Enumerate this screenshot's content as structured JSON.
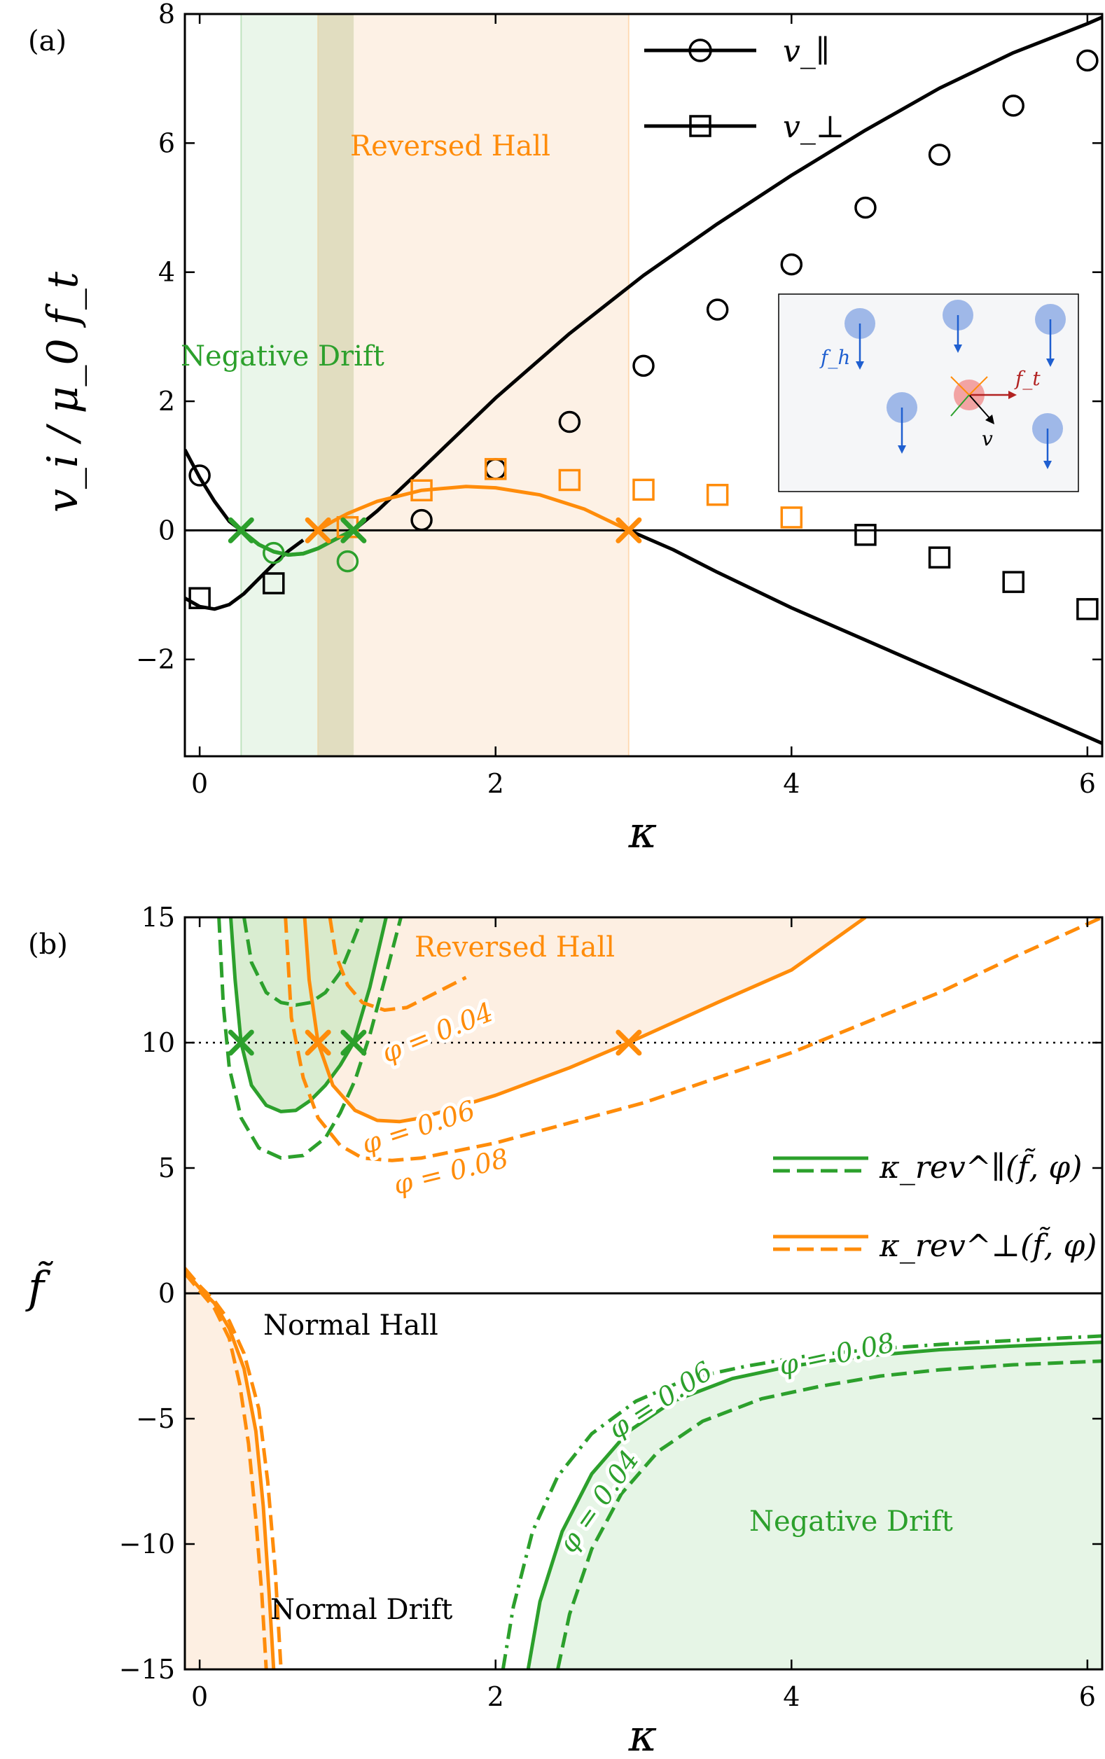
{
  "colors": {
    "green": "#2ca02c",
    "orange": "#ff8c0a",
    "black": "#000000",
    "green_fill": "#e6f5e6",
    "orange_fill": "#fdefe2",
    "inset_bg": "#f5f6f8",
    "blue": "#1f5fd0",
    "blue_disc": "#9fb8e8",
    "red_disc": "#f2a3a3",
    "red": "#b22222"
  },
  "chart_data": [
    {
      "type": "line",
      "panel_label": "(a)",
      "xlabel": "κ",
      "ylabel": "v_i / μ_0 f_t",
      "xlim": [
        -0.1,
        6.1
      ],
      "ylim": [
        -3.5,
        8
      ],
      "xticks": [
        0,
        2,
        4,
        6
      ],
      "yticks": [
        -2,
        0,
        2,
        4,
        6,
        8
      ],
      "grid": false,
      "legend_position": "top-right",
      "legend": [
        {
          "label": "v_∥",
          "marker": "circle"
        },
        {
          "label": "v_⊥",
          "marker": "square"
        }
      ],
      "regions": [
        {
          "name": "Negative Drift",
          "x": [
            0.28,
            1.04
          ],
          "color": "green"
        },
        {
          "name": "Reversed Hall",
          "x": [
            0.8,
            2.9
          ],
          "color": "orange"
        }
      ],
      "theory_parallel": {
        "x": [
          -0.1,
          0,
          0.1,
          0.2,
          0.28,
          0.4,
          0.5,
          0.6,
          0.7,
          0.8,
          0.9,
          1.0,
          1.04,
          1.2,
          1.5,
          2,
          2.5,
          3,
          3.5,
          4,
          4.5,
          5,
          5.5,
          6,
          6.1
        ],
        "y": [
          1.25,
          0.82,
          0.45,
          0.14,
          0.0,
          -0.22,
          -0.33,
          -0.38,
          -0.36,
          -0.28,
          -0.16,
          -0.04,
          0.0,
          0.3,
          0.95,
          2.05,
          3.05,
          3.95,
          4.75,
          5.5,
          6.2,
          6.85,
          7.4,
          7.85,
          7.95
        ],
        "color": "black"
      },
      "theory_perp": {
        "x": [
          -0.1,
          0,
          0.1,
          0.2,
          0.3,
          0.4,
          0.5,
          0.6,
          0.7,
          0.8,
          0.9,
          1.0,
          1.2,
          1.5,
          1.8,
          2.0,
          2.3,
          2.6,
          2.9,
          3.2,
          3.5,
          4,
          4.5,
          5,
          5.5,
          6,
          6.1
        ],
        "y": [
          -1.05,
          -1.18,
          -1.22,
          -1.15,
          -0.98,
          -0.75,
          -0.52,
          -0.32,
          -0.15,
          0.0,
          0.14,
          0.26,
          0.45,
          0.62,
          0.68,
          0.66,
          0.55,
          0.33,
          0.0,
          -0.3,
          -0.65,
          -1.2,
          -1.7,
          -2.2,
          -2.7,
          -3.2,
          -3.3
        ]
      },
      "sim_parallel": {
        "x": [
          0,
          0.5,
          1.0,
          1.5,
          2.0,
          2.5,
          3.0,
          3.5,
          4.0,
          4.5,
          5.0,
          5.5,
          6.0
        ],
        "y": [
          0.85,
          -0.35,
          -0.48,
          0.16,
          0.95,
          1.68,
          2.55,
          3.42,
          4.12,
          5.0,
          5.82,
          6.58,
          7.28
        ],
        "colors": [
          "black",
          "green",
          "green",
          "black",
          "black",
          "black",
          "black",
          "black",
          "black",
          "black",
          "black",
          "black",
          "black"
        ]
      },
      "sim_perp": {
        "x": [
          0,
          0.5,
          1.0,
          1.5,
          2.0,
          2.5,
          3.0,
          3.5,
          4.0,
          4.5,
          5.0,
          5.5,
          6.0
        ],
        "y": [
          -1.05,
          -0.82,
          0.05,
          0.62,
          0.95,
          0.78,
          0.63,
          0.55,
          0.2,
          -0.07,
          -0.42,
          -0.8,
          -1.22
        ],
        "colors": [
          "black",
          "black",
          "orange",
          "orange",
          "orange",
          "orange",
          "orange",
          "orange",
          "orange",
          "black",
          "black",
          "black",
          "black"
        ]
      },
      "crossings": [
        {
          "x": 0.28,
          "y": 0,
          "color": "green"
        },
        {
          "x": 1.04,
          "y": 0,
          "color": "green"
        },
        {
          "x": 0.8,
          "y": 0,
          "color": "orange"
        },
        {
          "x": 2.9,
          "y": 0,
          "color": "orange"
        }
      ],
      "inset": {
        "f_h_label": "f_h",
        "f_t_label": "f_t",
        "v_label": "v"
      }
    },
    {
      "type": "line",
      "panel_label": "(b)",
      "xlabel": "κ",
      "ylabel": "f̃",
      "xlim": [
        -0.1,
        6.1
      ],
      "ylim": [
        -15,
        15
      ],
      "xticks": [
        0,
        2,
        4,
        6
      ],
      "yticks": [
        -15,
        -10,
        -5,
        0,
        5,
        10,
        15
      ],
      "grid": false,
      "legend_position": "center-right",
      "legend": [
        {
          "label": "κ_rev^∥(f̃, φ)",
          "color": "green"
        },
        {
          "label": "κ_rev^⊥(f̃, φ)",
          "color": "orange"
        }
      ],
      "region_labels": [
        {
          "text": "Reversed Hall",
          "color": "orange"
        },
        {
          "text": "Normal Hall",
          "color": "black"
        },
        {
          "text": "Normal Drift",
          "color": "black"
        },
        {
          "text": "Negative Drift",
          "color": "green"
        }
      ],
      "reference_line": {
        "y": 10,
        "style": "dotted"
      },
      "zero_line": {
        "y": 0
      },
      "phi_labels_upper": [
        "φ = 0.04",
        "φ = 0.06",
        "φ = 0.08"
      ],
      "phi_labels_lower": [
        "φ = 0.04",
        "φ = 0.06",
        "φ = 0.08"
      ],
      "curves": [
        {
          "name": "par-upper-0.06",
          "color": "green",
          "style": "solid",
          "x": [
            0.21,
            0.24,
            0.28,
            0.35,
            0.45,
            0.55,
            0.65,
            0.75,
            0.85,
            0.95,
            1.04,
            1.15,
            1.26
          ],
          "y": [
            15,
            12.5,
            10,
            8.3,
            7.5,
            7.25,
            7.3,
            7.7,
            8.3,
            9.1,
            10,
            12.2,
            15
          ]
        },
        {
          "name": "par-upper-0.04",
          "color": "green",
          "style": "dashed",
          "x": [
            0.3,
            0.35,
            0.45,
            0.55,
            0.65,
            0.75,
            0.85,
            0.95,
            1.02,
            1.1
          ],
          "y": [
            15,
            13.2,
            12.0,
            11.6,
            11.5,
            11.6,
            12.0,
            12.8,
            13.8,
            15
          ]
        },
        {
          "name": "par-upper-0.08",
          "color": "green",
          "style": "dashed",
          "x": [
            0.13,
            0.16,
            0.2,
            0.28,
            0.4,
            0.55,
            0.7,
            0.85,
            0.95,
            1.05,
            1.15,
            1.25,
            1.36
          ],
          "y": [
            15,
            11.5,
            9.0,
            7.0,
            5.8,
            5.4,
            5.5,
            6.2,
            7.2,
            8.5,
            10.3,
            12.5,
            15
          ]
        },
        {
          "name": "perp-upper-0.06",
          "color": "orange",
          "style": "solid",
          "x": [
            0.71,
            0.74,
            0.8,
            0.9,
            1.05,
            1.2,
            1.35,
            1.5,
            2.0,
            2.5,
            2.9,
            3.5,
            4.0,
            4.5
          ],
          "y": [
            15,
            12.5,
            10,
            8.3,
            7.3,
            6.9,
            6.85,
            7.0,
            7.9,
            9.0,
            10,
            11.6,
            12.9,
            15
          ]
        },
        {
          "name": "perp-upper-0.04",
          "color": "orange",
          "style": "dashed",
          "x": [
            0.88,
            0.92,
            1.0,
            1.1,
            1.25,
            1.4,
            1.6,
            1.8
          ],
          "y": [
            15,
            13.5,
            12.3,
            11.6,
            11.3,
            11.4,
            12.0,
            12.6
          ]
        },
        {
          "name": "perp-upper-0.08",
          "color": "orange",
          "style": "dashed",
          "x": [
            0.58,
            0.62,
            0.7,
            0.8,
            0.95,
            1.1,
            1.3,
            1.5,
            2.0,
            2.5,
            3.0,
            3.5,
            4.0,
            4.5,
            5.0,
            5.5,
            6.1
          ],
          "y": [
            15,
            11.0,
            8.6,
            7.0,
            5.9,
            5.4,
            5.3,
            5.4,
            6.0,
            6.8,
            7.6,
            8.6,
            9.6,
            10.8,
            12.0,
            13.4,
            15
          ]
        },
        {
          "name": "perp-lower-0.06",
          "color": "orange",
          "style": "solid",
          "x": [
            -0.1,
            0,
            0.1,
            0.2,
            0.3,
            0.38,
            0.43,
            0.47,
            0.5
          ],
          "y": [
            0.9,
            0.2,
            -0.4,
            -1.4,
            -3.0,
            -5.5,
            -8.5,
            -12.0,
            -15
          ]
        },
        {
          "name": "perp-lower-0.04",
          "color": "orange",
          "style": "dashed",
          "x": [
            -0.1,
            0,
            0.1,
            0.2,
            0.3,
            0.4,
            0.46,
            0.51,
            0.55
          ],
          "y": [
            1.0,
            0.3,
            -0.3,
            -1.1,
            -2.4,
            -4.6,
            -7.5,
            -11.0,
            -15
          ]
        },
        {
          "name": "perp-lower-0.08",
          "color": "orange",
          "style": "dashed",
          "x": [
            -0.1,
            0,
            0.1,
            0.2,
            0.27,
            0.33,
            0.38,
            0.42,
            0.45
          ],
          "y": [
            0.8,
            0.1,
            -0.6,
            -1.8,
            -3.6,
            -6.0,
            -9.0,
            -12.0,
            -15
          ]
        },
        {
          "name": "par-lower-0.06",
          "color": "green",
          "style": "solid",
          "x": [
            2.22,
            2.3,
            2.45,
            2.65,
            2.9,
            3.2,
            3.6,
            4.0,
            4.5,
            5.0,
            5.5,
            6.1
          ],
          "y": [
            -15,
            -12.3,
            -9.5,
            -7.2,
            -5.5,
            -4.3,
            -3.4,
            -2.9,
            -2.5,
            -2.25,
            -2.1,
            -1.95
          ]
        },
        {
          "name": "par-lower-0.04",
          "color": "green",
          "style": "dashed",
          "x": [
            2.42,
            2.5,
            2.65,
            2.85,
            3.1,
            3.4,
            3.8,
            4.2,
            4.6,
            5.0,
            5.5,
            6.1
          ],
          "y": [
            -15,
            -12.8,
            -10.2,
            -8.0,
            -6.3,
            -5.1,
            -4.2,
            -3.7,
            -3.3,
            -3.05,
            -2.85,
            -2.7
          ]
        },
        {
          "name": "par-lower-0.08",
          "color": "green",
          "style": "dashdot",
          "x": [
            2.05,
            2.12,
            2.25,
            2.42,
            2.65,
            2.95,
            3.3,
            3.7,
            4.1,
            4.6,
            5.1,
            5.6,
            6.1
          ],
          "y": [
            -15,
            -12.5,
            -9.5,
            -7.3,
            -5.6,
            -4.3,
            -3.4,
            -2.9,
            -2.5,
            -2.2,
            -2.0,
            -1.85,
            -1.7
          ]
        }
      ],
      "crossings": [
        {
          "x": 0.28,
          "y": 10,
          "color": "green"
        },
        {
          "x": 1.04,
          "y": 10,
          "color": "green"
        },
        {
          "x": 0.8,
          "y": 10,
          "color": "orange"
        },
        {
          "x": 2.9,
          "y": 10,
          "color": "orange"
        }
      ]
    }
  ]
}
